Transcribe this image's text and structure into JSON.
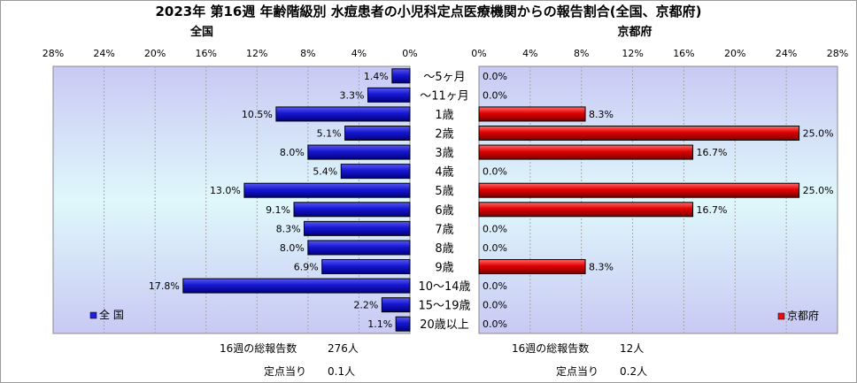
{
  "title": "2023年 第16週 年齢階級別 水痘患者の小児科定点医療機関からの報告割合(全国、京都府)",
  "chart_data": {
    "type": "bar",
    "categories": [
      "～5ヶ月",
      "～11ヶ月",
      "1歳",
      "2歳",
      "3歳",
      "4歳",
      "5歳",
      "6歳",
      "7歳",
      "8歳",
      "9歳",
      "10～14歳",
      "15～19歳",
      "20歳以上"
    ],
    "axis": {
      "min": 0,
      "max": 28,
      "step": 4,
      "tick_format": "{v}%"
    },
    "grid": true,
    "panels": [
      {
        "panel_title": "全国",
        "direction": "left",
        "bar_color": "#1f1fd8",
        "legend_label": "全 国",
        "legend_position": "bottom-left",
        "values": [
          1.4,
          3.3,
          10.5,
          5.1,
          8.0,
          5.4,
          13.0,
          9.1,
          8.3,
          8.0,
          6.9,
          17.8,
          2.2,
          1.1
        ],
        "value_labels": [
          "1.4%",
          "3.3%",
          "10.5%",
          "5.1%",
          "8.0%",
          "5.4%",
          "13.0%",
          "9.1%",
          "8.3%",
          "8.0%",
          "6.9%",
          "17.8%",
          "2.2%",
          "1.1%"
        ],
        "footer": {
          "total_label": "16週の総報告数",
          "total_value": "276人",
          "per_label": "定点当り",
          "per_value": "0.1人"
        }
      },
      {
        "panel_title": "京都府",
        "direction": "right",
        "bar_color": "#e01010",
        "legend_label": "京都府",
        "legend_position": "bottom-right",
        "values": [
          0.0,
          0.0,
          8.3,
          25.0,
          16.7,
          0.0,
          25.0,
          16.7,
          0.0,
          0.0,
          8.3,
          0.0,
          0.0,
          0.0
        ],
        "value_labels": [
          "0.0%",
          "0.0%",
          "8.3%",
          "25.0%",
          "16.7%",
          "0.0%",
          "25.0%",
          "16.7%",
          "0.0%",
          "0.0%",
          "8.3%",
          "0.0%",
          "0.0%",
          "0.0%"
        ],
        "footer": {
          "total_label": "16週の総報告数",
          "total_value": "12人",
          "per_label": "定点当り",
          "per_value": "0.2人"
        }
      }
    ]
  }
}
